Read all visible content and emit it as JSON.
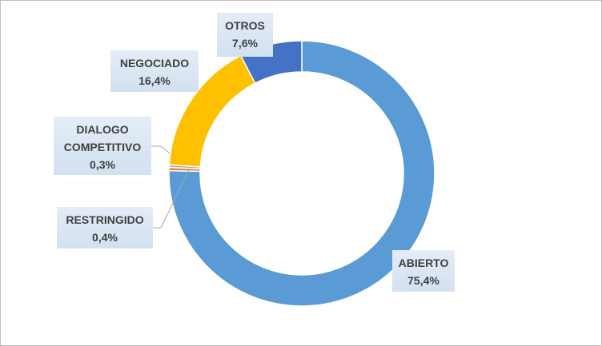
{
  "chart_data": {
    "type": "donut",
    "categories": [
      "ABIERTO",
      "RESTRINGIDO",
      "DIALOGO COMPETITIVO",
      "NEGOCIADO",
      "OTROS"
    ],
    "values": [
      75.4,
      0.4,
      0.3,
      16.4,
      7.6
    ],
    "value_labels": [
      "75,4%",
      "0,4%",
      "0,3%",
      "16,4%",
      "7,6%"
    ],
    "colors": [
      "#5b9bd5",
      "#ed7d31",
      "#a5a5a5",
      "#ffc000",
      "#4472c4"
    ]
  }
}
